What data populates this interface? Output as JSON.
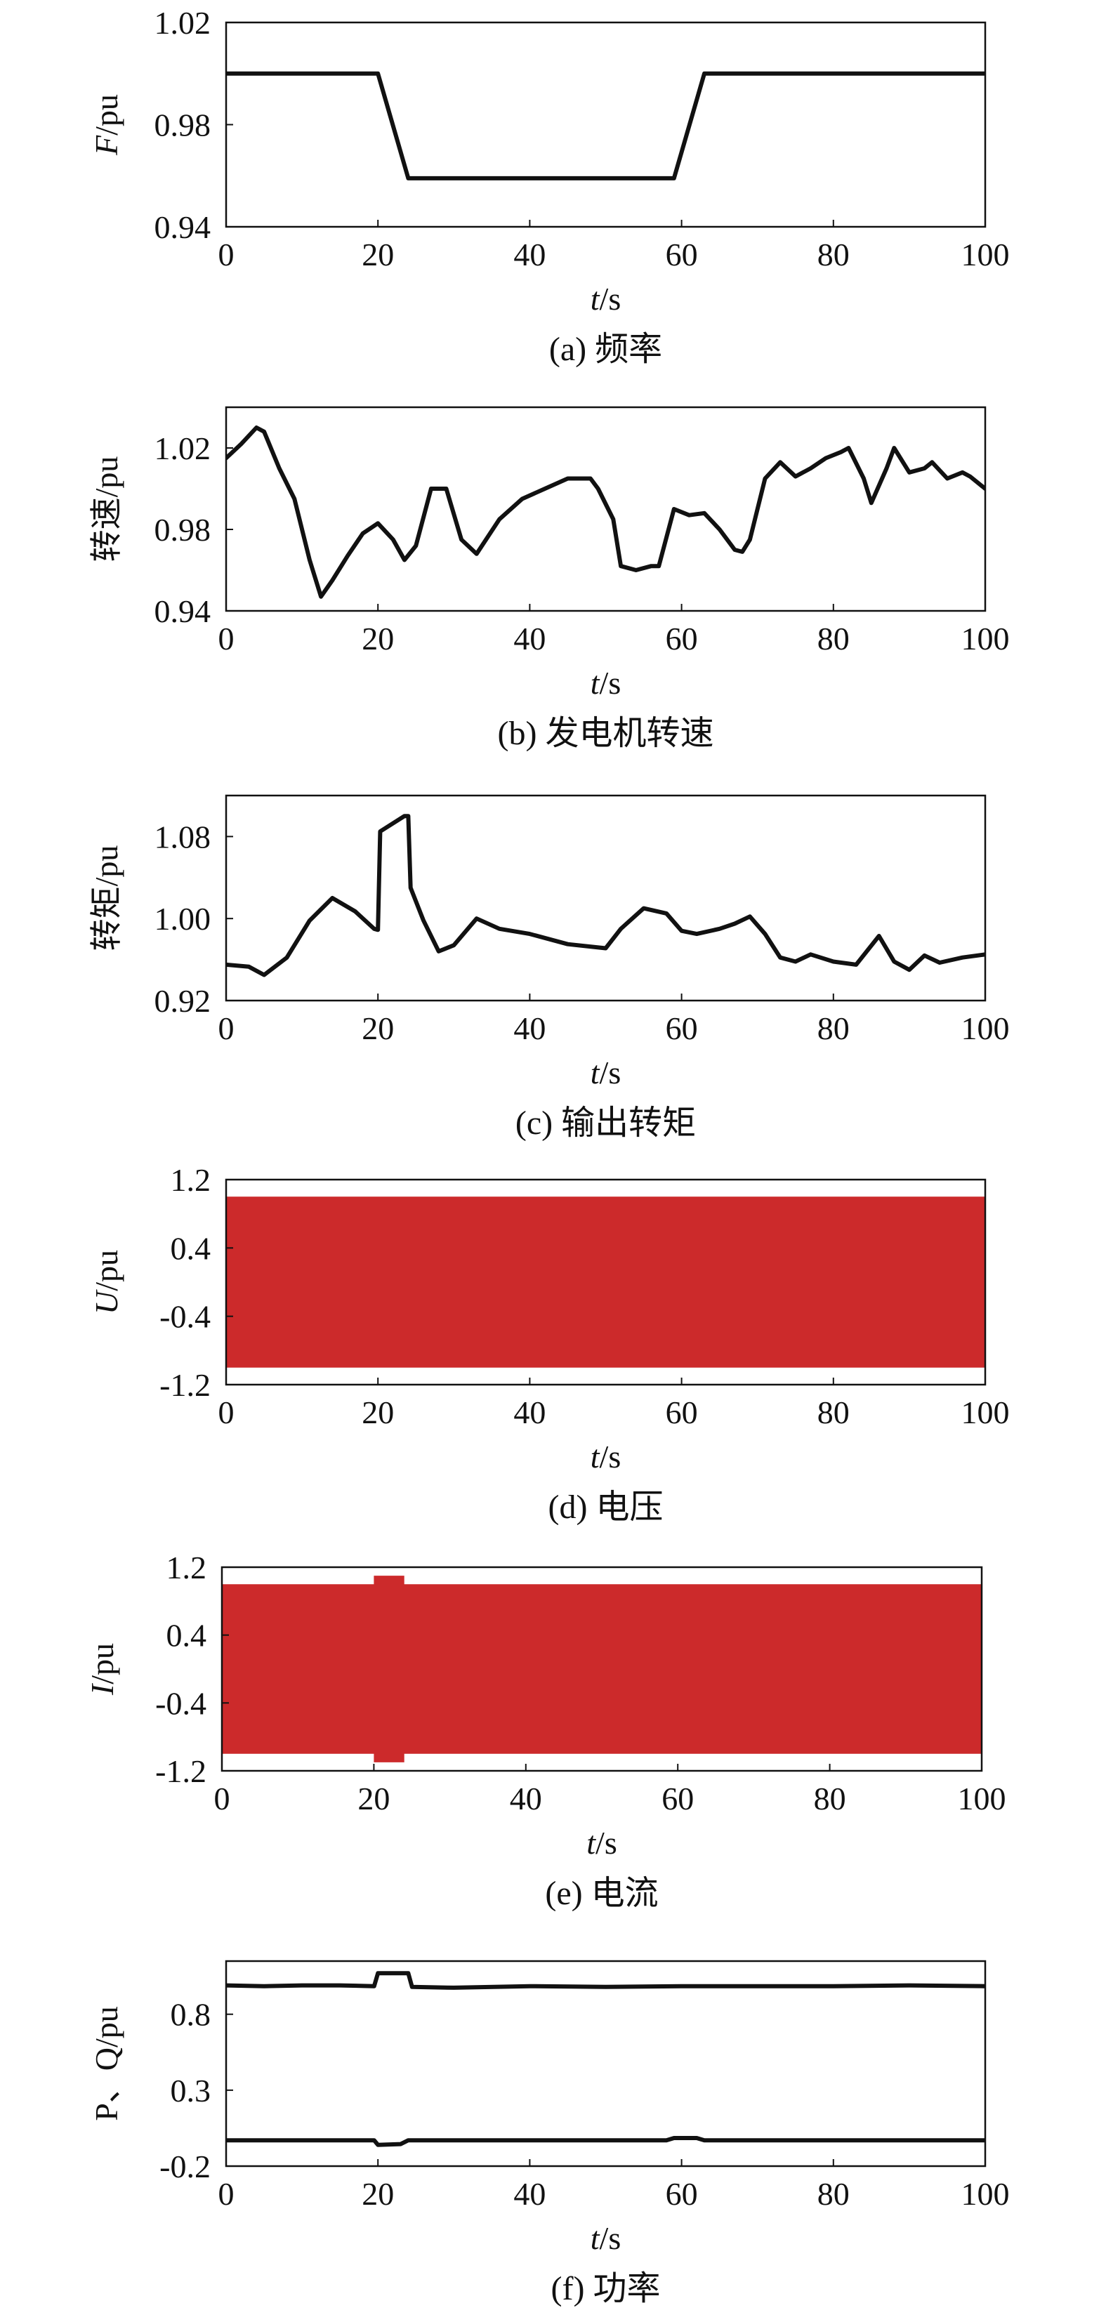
{
  "chart_data": [
    {
      "type": "line",
      "caption": "(a) 频率",
      "xlabel_var": "t",
      "xlabel_unit": "/s",
      "ylabel_var": "F",
      "ylabel_unit": "/pu",
      "xlim": [
        0,
        100
      ],
      "ylim": [
        0.94,
        1.02
      ],
      "x_ticks": [
        "0",
        "20",
        "40",
        "60",
        "80",
        "100"
      ],
      "y_ticks": [
        {
          "v": 0.94,
          "label": "0.94"
        },
        {
          "v": 0.98,
          "label": "0.98"
        },
        {
          "v": 1.02,
          "label": "1.02"
        }
      ],
      "series": [
        {
          "color": "#111111",
          "stroke_width": 6,
          "x": [
            0,
            20,
            24,
            59,
            63,
            100
          ],
          "y": [
            1.0,
            1.0,
            0.959,
            0.959,
            1.0,
            1.0
          ]
        }
      ]
    },
    {
      "type": "line",
      "caption": "(b) 发电机转速",
      "xlabel_var": "t",
      "xlabel_unit": "/s",
      "ylabel_var": "",
      "ylabel_unit": "转速/pu",
      "xlim": [
        0,
        100
      ],
      "ylim": [
        0.94,
        1.04
      ],
      "x_ticks": [
        "0",
        "20",
        "40",
        "60",
        "80",
        "100"
      ],
      "y_ticks": [
        {
          "v": 0.94,
          "label": "0.94"
        },
        {
          "v": 0.98,
          "label": "0.98"
        },
        {
          "v": 1.02,
          "label": "1.02"
        }
      ],
      "series": [
        {
          "color": "#111111",
          "stroke_width": 6,
          "x": [
            0,
            2,
            4,
            5,
            7,
            9,
            11,
            12.5,
            14,
            16,
            18,
            20,
            22,
            23.5,
            25,
            27,
            29,
            31,
            33,
            36,
            39,
            42,
            45,
            48,
            49,
            51,
            52,
            54,
            56,
            57,
            59,
            61,
            63,
            65,
            67,
            68,
            69,
            71,
            73,
            75,
            77,
            79,
            81,
            82,
            84,
            85,
            87,
            88,
            90,
            92,
            93,
            95,
            97,
            98,
            100
          ],
          "y": [
            1.015,
            1.022,
            1.03,
            1.028,
            1.01,
            0.995,
            0.965,
            0.947,
            0.955,
            0.967,
            0.978,
            0.983,
            0.975,
            0.965,
            0.972,
            1.0,
            1.0,
            0.975,
            0.968,
            0.985,
            0.995,
            1.0,
            1.005,
            1.005,
            1.0,
            0.985,
            0.962,
            0.96,
            0.962,
            0.962,
            0.99,
            0.987,
            0.988,
            0.98,
            0.97,
            0.969,
            0.975,
            1.005,
            1.013,
            1.006,
            1.01,
            1.015,
            1.018,
            1.02,
            1.005,
            0.993,
            1.01,
            1.02,
            1.008,
            1.01,
            1.013,
            1.005,
            1.008,
            1.006,
            1.0
          ]
        }
      ]
    },
    {
      "type": "line",
      "caption": "(c) 输出转矩",
      "xlabel_var": "t",
      "xlabel_unit": "/s",
      "ylabel_var": "",
      "ylabel_unit": "转矩/pu",
      "xlim": [
        0,
        100
      ],
      "ylim": [
        0.92,
        1.12
      ],
      "x_ticks": [
        "0",
        "20",
        "40",
        "60",
        "80",
        "100"
      ],
      "y_ticks": [
        {
          "v": 0.92,
          "label": "0.92"
        },
        {
          "v": 1.0,
          "label": "1.00"
        },
        {
          "v": 1.08,
          "label": "1.08"
        }
      ],
      "series": [
        {
          "color": "#111111",
          "stroke_width": 6,
          "x": [
            0,
            3,
            5,
            8,
            11,
            14,
            17,
            19.5,
            20,
            20.3,
            23.5,
            24,
            24.3,
            26,
            28,
            30,
            33,
            36,
            40,
            45,
            50,
            52,
            55,
            58,
            60,
            62,
            65,
            67,
            69,
            71,
            73,
            75,
            77,
            80,
            83,
            86,
            88,
            90,
            92,
            94,
            97,
            100
          ],
          "y": [
            0.955,
            0.953,
            0.945,
            0.962,
            0.998,
            1.02,
            1.007,
            0.99,
            0.989,
            1.085,
            1.1,
            1.1,
            1.03,
            0.998,
            0.968,
            0.974,
            1.0,
            0.99,
            0.985,
            0.975,
            0.971,
            0.99,
            1.01,
            1.005,
            0.988,
            0.985,
            0.99,
            0.995,
            1.002,
            0.985,
            0.962,
            0.958,
            0.965,
            0.958,
            0.955,
            0.983,
            0.958,
            0.95,
            0.964,
            0.957,
            0.962,
            0.965
          ]
        }
      ]
    },
    {
      "type": "area",
      "caption": "(d) 电压",
      "xlabel_var": "t",
      "xlabel_unit": "/s",
      "ylabel_var": "U",
      "ylabel_unit": "/pu",
      "xlim": [
        0,
        100
      ],
      "ylim": [
        -1.2,
        1.2
      ],
      "x_ticks": [
        "0",
        "20",
        "40",
        "60",
        "80",
        "100"
      ],
      "y_ticks": [
        {
          "v": -1.2,
          "label": "-1.2"
        },
        {
          "v": -0.4,
          "label": "-0.4"
        },
        {
          "v": 0.4,
          "label": "0.4"
        },
        {
          "v": 1.2,
          "label": "1.2"
        }
      ],
      "envelope": {
        "color": "#cc2a2b",
        "x": [
          0,
          100
        ],
        "upper": [
          1.0,
          1.0
        ],
        "lower": [
          -1.0,
          -1.0
        ]
      }
    },
    {
      "type": "area",
      "caption": "(e) 电流",
      "xlabel_var": "t",
      "xlabel_unit": "/s",
      "ylabel_var": "I",
      "ylabel_unit": "/pu",
      "xlim": [
        0,
        100
      ],
      "ylim": [
        -1.2,
        1.2
      ],
      "x_ticks": [
        "0",
        "20",
        "40",
        "60",
        "80",
        "100"
      ],
      "y_ticks": [
        {
          "v": -1.2,
          "label": "-1.2"
        },
        {
          "v": -0.4,
          "label": "-0.4"
        },
        {
          "v": 0.4,
          "label": "0.4"
        },
        {
          "v": 1.2,
          "label": "1.2"
        }
      ],
      "envelope": {
        "color": "#cc2a2b",
        "x": [
          0,
          20,
          20,
          24,
          24,
          100
        ],
        "upper": [
          1.0,
          1.0,
          1.1,
          1.1,
          1.0,
          1.0
        ],
        "lower": [
          -1.0,
          -1.0,
          -1.1,
          -1.1,
          -1.0,
          -1.0
        ]
      }
    },
    {
      "type": "line",
      "caption": "(f) 功率",
      "xlabel_var": "t",
      "xlabel_unit": "/s",
      "ylabel_var": "",
      "ylabel_unit": "P、Q/pu",
      "xlim": [
        0,
        100
      ],
      "ylim": [
        -0.2,
        1.15
      ],
      "x_ticks": [
        "0",
        "20",
        "40",
        "60",
        "80",
        "100"
      ],
      "y_ticks": [
        {
          "v": -0.2,
          "label": "-0.2"
        },
        {
          "v": 0.3,
          "label": "0.3"
        },
        {
          "v": 0.8,
          "label": "0.8"
        }
      ],
      "series": [
        {
          "name": "P",
          "color": "#111111",
          "stroke_width": 6,
          "x": [
            0,
            5,
            10,
            15,
            19.5,
            20,
            24,
            24.5,
            30,
            40,
            50,
            60,
            70,
            80,
            90,
            100
          ],
          "y": [
            0.99,
            0.985,
            0.99,
            0.99,
            0.985,
            1.07,
            1.07,
            0.98,
            0.975,
            0.985,
            0.98,
            0.985,
            0.985,
            0.985,
            0.99,
            0.985
          ]
        },
        {
          "name": "Q",
          "color": "#111111",
          "stroke_width": 6,
          "x": [
            0,
            19.5,
            20,
            23,
            24,
            58,
            59,
            62,
            63,
            100
          ],
          "y": [
            -0.03,
            -0.03,
            -0.06,
            -0.055,
            -0.03,
            -0.03,
            -0.015,
            -0.015,
            -0.03,
            -0.03
          ]
        }
      ]
    }
  ]
}
